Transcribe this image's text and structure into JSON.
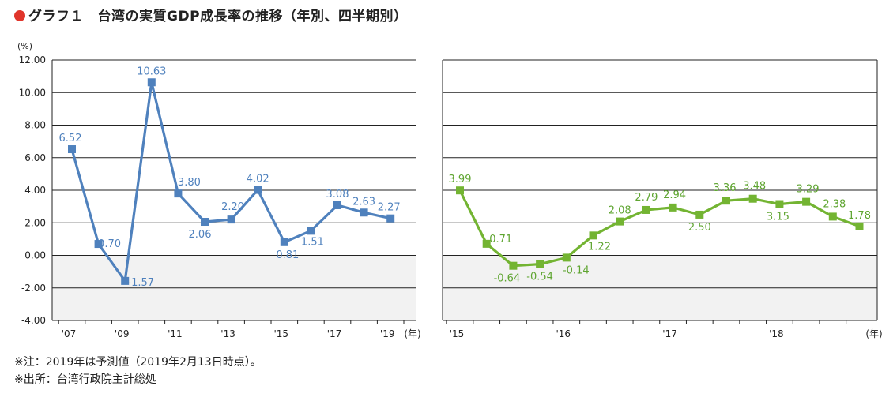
{
  "title": "グラフ１　台湾の実質GDP成長率の推移（年別、四半期別）",
  "unit": "(%)",
  "notes": [
    "※注：2019年は予測値（2019年2月13日時点）。",
    "※出所：台湾行政院主計総処"
  ],
  "colors": {
    "annual": "#4f81bd",
    "quarterly": "#73b432",
    "negative_band": "#f2f2f2",
    "title_dot": "#e0352b"
  },
  "chart_data": [
    {
      "type": "line",
      "title": "",
      "ylabel": "(%)",
      "ylim": [
        -4.0,
        12.0
      ],
      "yticks": [
        "12.00",
        "10.00",
        "8.00",
        "6.00",
        "4.00",
        "2.00",
        "0.00",
        "-2.00",
        "-4.00"
      ],
      "x": [
        "2007",
        "2008",
        "2009",
        "2010",
        "2011",
        "2012",
        "2013",
        "2014",
        "2015",
        "2016",
        "2017",
        "2018",
        "2019"
      ],
      "x_tick_labels": [
        {
          "at": "2007",
          "label": "'07"
        },
        {
          "at": "2009",
          "label": "'09"
        },
        {
          "at": "2011",
          "label": "'11"
        },
        {
          "at": "2013",
          "label": "'13"
        },
        {
          "at": "2015",
          "label": "'15"
        },
        {
          "at": "2017",
          "label": "'17"
        },
        {
          "at": "2019",
          "label": "'19"
        }
      ],
      "x_unit": "(年)",
      "series": [
        {
          "values": [
            6.52,
            0.7,
            -1.57,
            10.63,
            3.8,
            2.06,
            2.2,
            4.02,
            0.81,
            1.51,
            3.08,
            2.63,
            2.27
          ],
          "labels": [
            "6.52",
            "0.70",
            "-1.57",
            "10.63",
            "3.80",
            "2.06",
            "2.20",
            "4.02",
            "0.81",
            "1.51",
            "3.08",
            "2.63",
            "2.27"
          ]
        }
      ],
      "grid": true
    },
    {
      "type": "line",
      "title": "",
      "ylim": [
        -4.0,
        12.0
      ],
      "x": [
        "2015Q1",
        "2015Q2",
        "2015Q3",
        "2015Q4",
        "2016Q1",
        "2016Q2",
        "2016Q3",
        "2016Q4",
        "2017Q1",
        "2017Q2",
        "2017Q3",
        "2017Q4",
        "2018Q1",
        "2018Q2",
        "2018Q3",
        "2018Q4"
      ],
      "x_tick_labels": [
        {
          "at": "2015Q1",
          "label": "'15"
        },
        {
          "at": "2016Q1",
          "label": "'16"
        },
        {
          "at": "2017Q1",
          "label": "'17"
        },
        {
          "at": "2018Q1",
          "label": "'18"
        }
      ],
      "x_unit": "(年)",
      "series": [
        {
          "values": [
            3.99,
            0.71,
            -0.64,
            -0.54,
            -0.14,
            1.22,
            2.08,
            2.79,
            2.94,
            2.5,
            3.36,
            3.48,
            3.15,
            3.29,
            2.38,
            1.78
          ],
          "labels": [
            "3.99",
            "0.71",
            "-0.64",
            "-0.54",
            "-0.14",
            "1.22",
            "2.08",
            "2.79",
            "2.94",
            "2.50",
            "3.36",
            "3.48",
            "3.15",
            "3.29",
            "2.38",
            "1.78"
          ]
        }
      ],
      "grid": true
    }
  ]
}
